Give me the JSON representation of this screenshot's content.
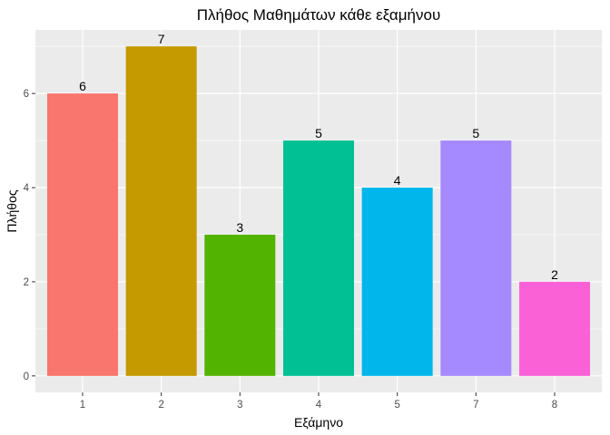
{
  "chart_data": {
    "type": "bar",
    "title": "Πλήθος Μαθημάτων κάθε εξαμήνου",
    "xlabel": "Εξάμηνο",
    "ylabel": "Πλήθος",
    "categories": [
      "1",
      "2",
      "3",
      "4",
      "5",
      "7",
      "8"
    ],
    "values": [
      6,
      7,
      3,
      5,
      4,
      5,
      2
    ],
    "data_labels": [
      "6",
      "7",
      "3",
      "5",
      "4",
      "5",
      "2"
    ],
    "colors": [
      "#F8766D",
      "#C49A00",
      "#53B400",
      "#00C094",
      "#00B6EB",
      "#A58AFF",
      "#FB61D7"
    ],
    "ylim": [
      -0.35,
      7.35
    ],
    "yticks": [
      0,
      2,
      4,
      6
    ],
    "ytick_labels": [
      "0",
      "2",
      "4",
      "6"
    ],
    "grid": true,
    "legend": "none",
    "panel_background": "#EBEBEB",
    "grid_color": "#FFFFFF"
  }
}
